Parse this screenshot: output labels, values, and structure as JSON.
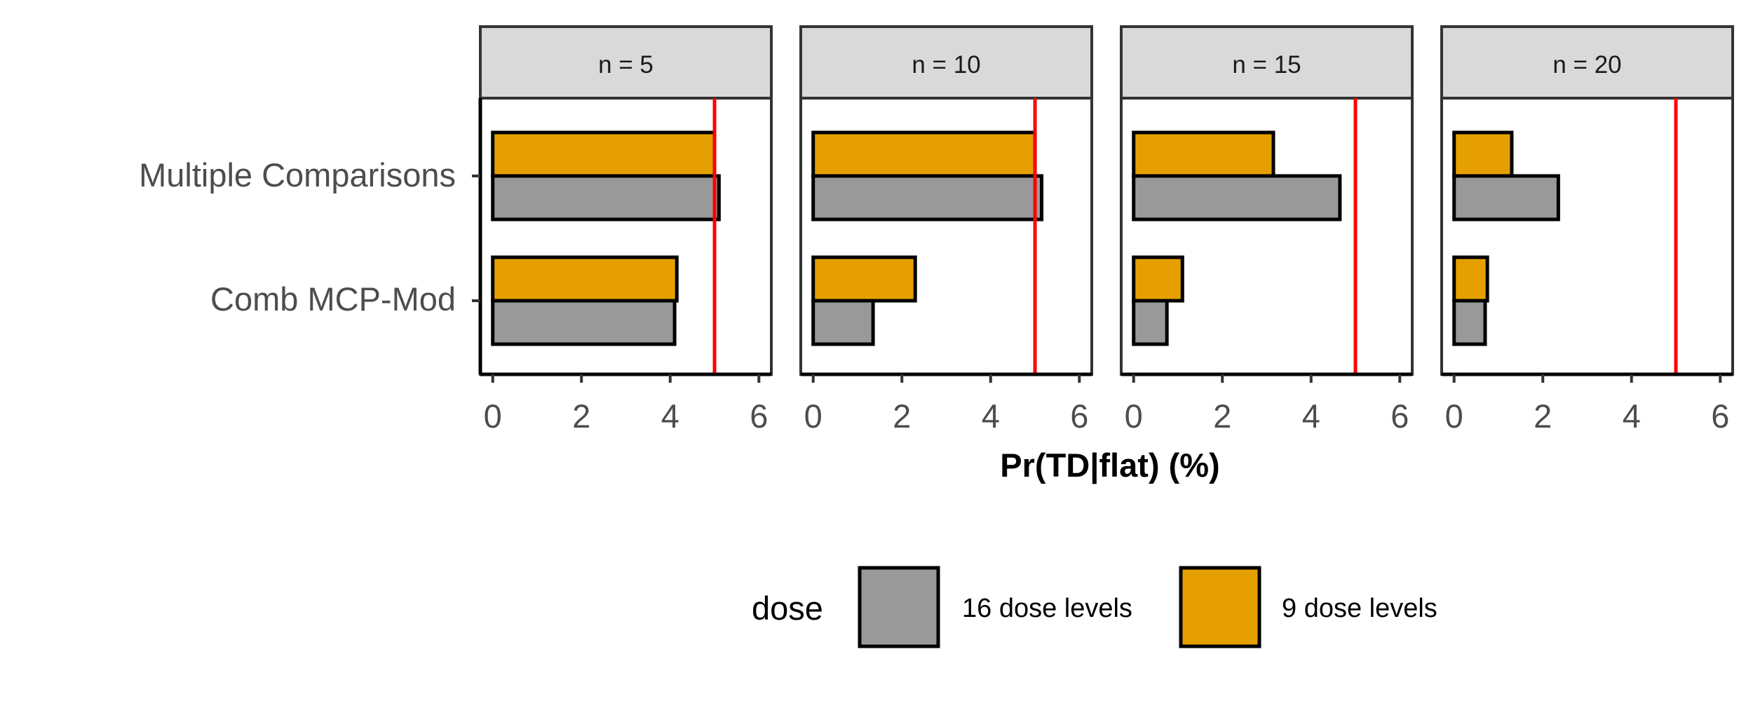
{
  "chart_data": {
    "type": "bar",
    "orientation": "horizontal",
    "facet_titles": [
      "n = 5",
      "n = 10",
      "n = 15",
      "n = 20"
    ],
    "categories": [
      "Multiple Comparisons",
      "Comb MCP-Mod"
    ],
    "series": [
      {
        "name": "9 dose levels",
        "color": "#E69F00",
        "values": [
          [
            5.0,
            4.15
          ],
          [
            5.0,
            2.3
          ],
          [
            3.15,
            1.1
          ],
          [
            1.3,
            0.75
          ]
        ]
      },
      {
        "name": "16 dose levels",
        "color": "#999999",
        "values": [
          [
            5.1,
            4.1
          ],
          [
            5.15,
            1.35
          ],
          [
            4.65,
            0.75
          ],
          [
            2.35,
            0.7
          ]
        ]
      }
    ],
    "reference_line": {
      "x": 5,
      "color": "#FF0000"
    },
    "xlabel": "Pr(TD|flat) (%)",
    "xticks": [
      "0",
      "2",
      "4",
      "6"
    ],
    "xlim": [
      -0.28,
      6.28
    ],
    "grid": false,
    "legend": {
      "title": "dose",
      "position": "bottom",
      "items": [
        {
          "label": "16 dose levels",
          "color": "#999999"
        },
        {
          "label": "9 dose levels",
          "color": "#E69F00"
        }
      ]
    }
  }
}
